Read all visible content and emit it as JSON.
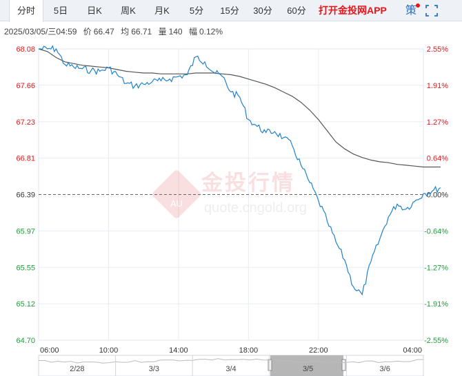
{
  "tabs": [
    {
      "label": "分时",
      "active": true
    },
    {
      "label": "5日"
    },
    {
      "label": "日K"
    },
    {
      "label": "周K"
    },
    {
      "label": "月K"
    },
    {
      "label": "5分"
    },
    {
      "label": "15分"
    },
    {
      "label": "30分"
    },
    {
      "label": "60分"
    }
  ],
  "promo_label": "打开金投网APP",
  "strategy_label": "策",
  "info": {
    "datetime": "2025/03/05/三04:59",
    "price_label": "价",
    "price": "66.47",
    "avg_label": "均",
    "avg": "66.71",
    "vol_label": "量",
    "vol": "140",
    "amp_label": "幅",
    "amp": "0.12%"
  },
  "watermark": {
    "brand": "金投行情",
    "url": "quote.cngold.org",
    "badge": "AU"
  },
  "navigator": {
    "labels": [
      "2/28",
      "3/3",
      "3/4",
      "3/5",
      "3/6"
    ]
  },
  "colors": {
    "price_line": "#1f82c9",
    "avg_line": "#555555",
    "up": "#e8141b",
    "down": "#1f9e3a",
    "base": "#333333",
    "grid": "#e8ecf1",
    "nav_selected": "#a9a9a9"
  },
  "chart_data": {
    "type": "line",
    "title": "",
    "xlabel": "",
    "ylabel": "",
    "prev_close": 66.39,
    "ylim": [
      64.7,
      68.08
    ],
    "y_ticks": [
      "68.08",
      "67.66",
      "67.23",
      "66.81",
      "66.39",
      "65.97",
      "65.55",
      "65.12",
      "64.70"
    ],
    "pct_ticks": [
      "2.55%",
      "1.91%",
      "1.27%",
      "0.64%",
      "0.00%",
      "-0.64%",
      "-1.27%",
      "-1.91%",
      "-2.55%"
    ],
    "x_ticks": [
      "06:00",
      "10:00",
      "14:00",
      "18:00",
      "22:00",
      "04:00"
    ],
    "grid": true,
    "series": [
      {
        "x": [
          "06:00",
          "06:30",
          "07:00",
          "07:30",
          "08:00",
          "08:30",
          "09:00",
          "09:30",
          "10:00",
          "10:30",
          "11:00",
          "11:30",
          "12:00",
          "12:30",
          "13:00",
          "13:30",
          "14:00",
          "14:30",
          "15:00",
          "15:30",
          "16:00",
          "16:30",
          "17:00",
          "17:30",
          "18:00",
          "18:30",
          "19:00",
          "19:30",
          "20:00",
          "20:30",
          "21:00",
          "21:30",
          "22:00",
          "22:30",
          "23:00",
          "23:30",
          "00:00",
          "00:30",
          "01:00",
          "01:30",
          "02:00",
          "02:30",
          "03:00",
          "03:30",
          "04:00",
          "04:30",
          "04:59"
        ],
        "values": [
          68.08,
          68.08,
          68.08,
          67.9,
          67.87,
          67.85,
          67.83,
          67.82,
          67.86,
          67.78,
          67.68,
          67.65,
          67.67,
          67.7,
          67.71,
          67.73,
          67.76,
          67.78,
          67.99,
          67.93,
          67.81,
          67.76,
          67.58,
          67.52,
          67.26,
          67.18,
          67.11,
          67.12,
          67.05,
          66.96,
          66.73,
          66.53,
          66.32,
          66.08,
          65.84,
          65.63,
          65.32,
          65.23,
          65.61,
          65.87,
          66.13,
          66.28,
          66.22,
          66.31,
          66.4,
          66.43,
          66.47
        ]
      },
      {
        "x": [
          "06:00",
          "06:30",
          "07:00",
          "07:30",
          "08:00",
          "08:30",
          "09:00",
          "09:30",
          "10:00",
          "10:30",
          "11:00",
          "11:30",
          "12:00",
          "12:30",
          "13:00",
          "13:30",
          "14:00",
          "14:30",
          "15:00",
          "15:30",
          "16:00",
          "16:30",
          "17:00",
          "17:30",
          "18:00",
          "18:30",
          "19:00",
          "19:30",
          "20:00",
          "20:30",
          "21:00",
          "21:30",
          "22:00",
          "22:30",
          "23:00",
          "23:30",
          "00:00",
          "00:30",
          "01:00",
          "01:30",
          "02:00",
          "02:30",
          "03:00",
          "03:30",
          "04:00",
          "04:30",
          "04:59"
        ],
        "values": [
          68.08,
          68.05,
          67.98,
          67.93,
          67.91,
          67.89,
          67.88,
          67.87,
          67.86,
          67.84,
          67.82,
          67.81,
          67.8,
          67.8,
          67.79,
          67.79,
          67.79,
          67.79,
          67.8,
          67.8,
          67.8,
          67.79,
          67.78,
          67.76,
          67.73,
          67.7,
          67.67,
          67.63,
          67.58,
          67.53,
          67.46,
          67.37,
          67.26,
          67.13,
          67.0,
          66.92,
          66.86,
          66.82,
          66.79,
          66.77,
          66.76,
          66.74,
          66.73,
          66.72,
          66.71,
          66.71,
          66.71
        ]
      }
    ]
  }
}
